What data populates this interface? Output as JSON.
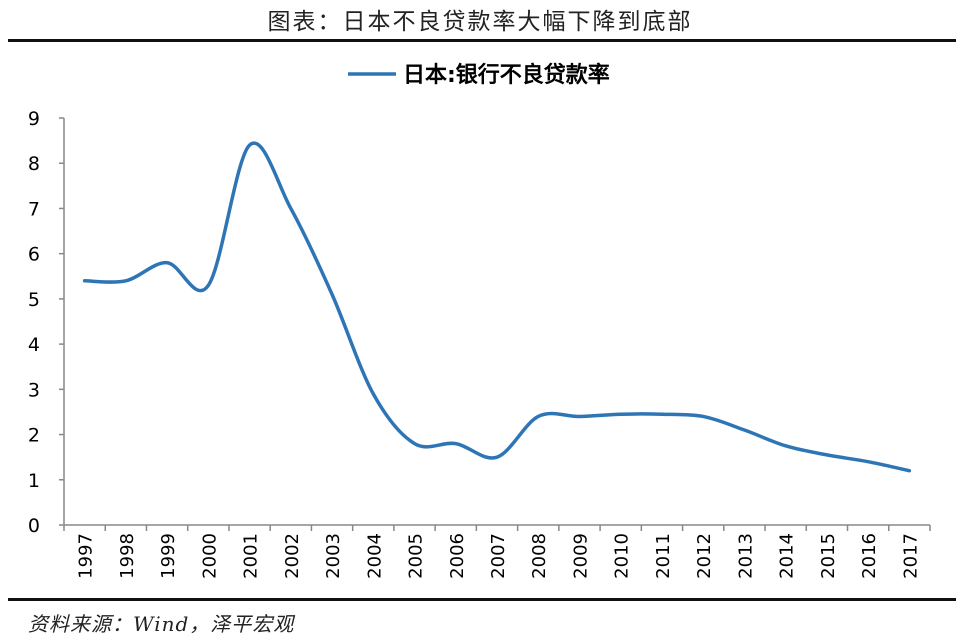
{
  "figure_title": "图表：日本不良贷款率大幅下降到底部",
  "source_note": "资料来源：Wind，泽平宏观",
  "colors": {
    "line": "#2e75b6",
    "axis": "#888888",
    "text": "#000000"
  },
  "chart_data": {
    "type": "line",
    "title": "",
    "xlabel": "",
    "ylabel": "",
    "ylim": [
      0,
      9
    ],
    "y_ticks": [
      "0",
      "1",
      "2",
      "3",
      "4",
      "5",
      "6",
      "7",
      "8",
      "9"
    ],
    "grid": false,
    "legend_position": "top-center",
    "categories": [
      "1997",
      "1998",
      "1999",
      "2000",
      "2001",
      "2002",
      "2003",
      "2004",
      "2005",
      "2006",
      "2007",
      "2008",
      "2009",
      "2010",
      "2011",
      "2012",
      "2013",
      "2014",
      "2015",
      "2016",
      "2017"
    ],
    "series": [
      {
        "name": "日本:银行不良贷款率",
        "values": [
          5.4,
          5.4,
          5.8,
          5.3,
          8.4,
          7.0,
          5.1,
          2.9,
          1.8,
          1.8,
          1.5,
          2.4,
          2.4,
          2.45,
          2.45,
          2.4,
          2.1,
          1.75,
          1.55,
          1.4,
          1.2
        ]
      }
    ]
  }
}
